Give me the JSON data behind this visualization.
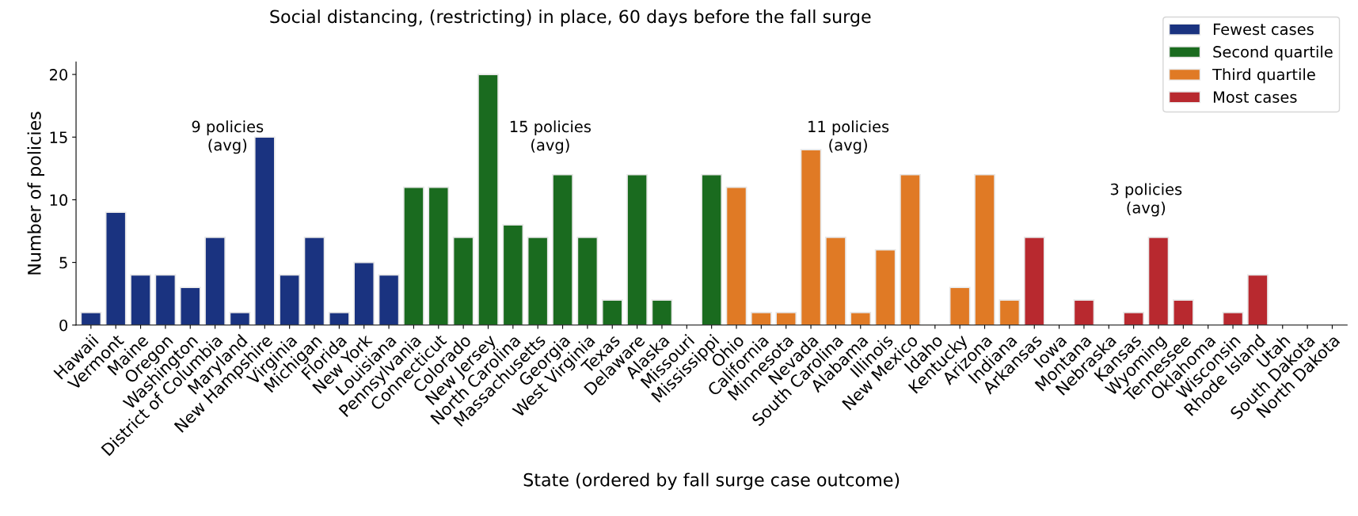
{
  "chart_data": {
    "type": "bar",
    "title": "Social distancing, (restricting) in place, 60 days before the fall surge",
    "xlabel": "State (ordered by fall surge case outcome)",
    "ylabel": "Number of policies",
    "categories": [
      "Hawaii",
      "Vermont",
      "Maine",
      "Oregon",
      "Washington",
      "District of Columbia",
      "Maryland",
      "New Hampshire",
      "Virginia",
      "Michigan",
      "Florida",
      "New York",
      "Louisiana",
      "Pennsylvania",
      "Connecticut",
      "Colorado",
      "New Jersey",
      "North Carolina",
      "Massachusetts",
      "Georgia",
      "West Virginia",
      "Texas",
      "Delaware",
      "Alaska",
      "Missouri",
      "Mississippi",
      "Ohio",
      "California",
      "Minnesota",
      "Nevada",
      "South Carolina",
      "Alabama",
      "Illinois",
      "New Mexico",
      "Idaho",
      "Kentucky",
      "Arizona",
      "Indiana",
      "Arkansas",
      "Iowa",
      "Montana",
      "Nebraska",
      "Kansas",
      "Wyoming",
      "Tennessee",
      "Oklahoma",
      "Wisconsin",
      "Rhode Island",
      "Utah",
      "South Dakota",
      "North Dakota"
    ],
    "series": [
      {
        "name": "Fewest cases",
        "color": "#1a3380",
        "values": [
          1,
          9,
          4,
          4,
          3,
          7,
          1,
          15,
          4,
          7,
          1,
          5,
          4,
          null,
          null,
          null,
          null,
          null,
          null,
          null,
          null,
          null,
          null,
          null,
          null,
          null,
          null,
          null,
          null,
          null,
          null,
          null,
          null,
          null,
          null,
          null,
          null,
          null,
          null,
          null,
          null,
          null,
          null,
          null,
          null,
          null,
          null,
          null,
          null,
          null,
          null
        ]
      },
      {
        "name": "Second quartile",
        "color": "#1a6b1f",
        "values": [
          null,
          null,
          null,
          null,
          null,
          null,
          null,
          null,
          null,
          null,
          null,
          null,
          null,
          11,
          11,
          7,
          20,
          8,
          7,
          12,
          7,
          2,
          12,
          2,
          0,
          12,
          null,
          null,
          null,
          null,
          null,
          null,
          null,
          null,
          null,
          null,
          null,
          null,
          null,
          null,
          null,
          null,
          null,
          null,
          null,
          null,
          null,
          null,
          null,
          null,
          null
        ]
      },
      {
        "name": "Third quartile",
        "color": "#e07a25",
        "values": [
          null,
          null,
          null,
          null,
          null,
          null,
          null,
          null,
          null,
          null,
          null,
          null,
          null,
          null,
          null,
          null,
          null,
          null,
          null,
          null,
          null,
          null,
          null,
          null,
          null,
          null,
          11,
          1,
          1,
          14,
          7,
          1,
          6,
          12,
          0,
          3,
          12,
          2,
          null,
          null,
          null,
          null,
          null,
          null,
          null,
          null,
          null,
          null,
          null,
          null,
          null
        ]
      },
      {
        "name": "Most cases",
        "color": "#b8292f",
        "values": [
          null,
          null,
          null,
          null,
          null,
          null,
          null,
          null,
          null,
          null,
          null,
          null,
          null,
          null,
          null,
          null,
          null,
          null,
          null,
          null,
          null,
          null,
          null,
          null,
          null,
          null,
          null,
          null,
          null,
          null,
          null,
          null,
          null,
          null,
          null,
          null,
          null,
          null,
          7,
          0,
          2,
          0,
          1,
          7,
          2,
          0,
          1,
          4,
          0,
          0,
          0
        ]
      }
    ],
    "ylim": [
      0,
      21
    ],
    "yticks": [
      0,
      5,
      10,
      15,
      20
    ],
    "grid": false,
    "legend": "top right",
    "annotations": [
      "9 policies\n(avg)",
      "15 policies\n(avg)",
      "11 policies\n(avg)",
      "3 policies\n(avg)"
    ]
  }
}
